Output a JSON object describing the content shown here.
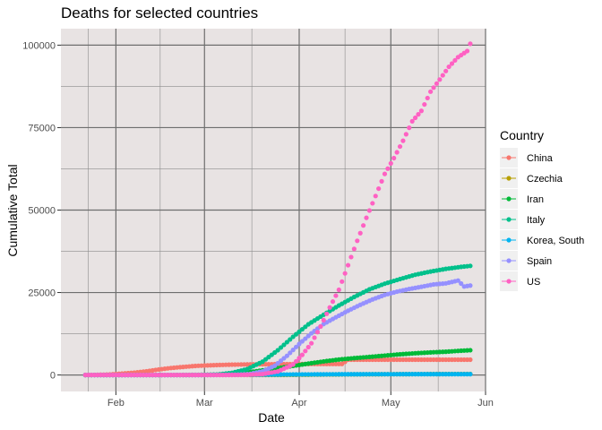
{
  "chart_data": {
    "type": "scatter",
    "title": "Deaths for selected countries",
    "xlabel": "Date",
    "ylabel": "Cumulative Total",
    "x_axis": {
      "type": "date",
      "range": [
        "2020-01-14",
        "2020-06-01"
      ],
      "ticks": [
        {
          "label": "Feb",
          "value": "2020-02-01"
        },
        {
          "label": "Mar",
          "value": "2020-03-01"
        },
        {
          "label": "Apr",
          "value": "2020-04-01"
        },
        {
          "label": "May",
          "value": "2020-05-01"
        },
        {
          "label": "Jun",
          "value": "2020-06-01"
        }
      ]
    },
    "y_axis": {
      "range": [
        -5000,
        105000
      ],
      "ticks": [
        0,
        25000,
        50000,
        75000,
        100000
      ],
      "tick_labels": [
        "0",
        "25000",
        "50000",
        "75000",
        "100000"
      ]
    },
    "grid": true,
    "background": "#e8e3e3",
    "legend": {
      "title": "Country",
      "position": "right"
    },
    "series": [
      {
        "name": "China",
        "color": "#F8766D",
        "points": [
          [
            "2020-01-22",
            17
          ],
          [
            "2020-01-26",
            56
          ],
          [
            "2020-01-30",
            170
          ],
          [
            "2020-02-03",
            425
          ],
          [
            "2020-02-07",
            720
          ],
          [
            "2020-02-11",
            1113
          ],
          [
            "2020-02-15",
            1666
          ],
          [
            "2020-02-19",
            2118
          ],
          [
            "2020-02-23",
            2442
          ],
          [
            "2020-02-27",
            2744
          ],
          [
            "2020-03-02",
            2915
          ],
          [
            "2020-03-06",
            3042
          ],
          [
            "2020-03-10",
            3140
          ],
          [
            "2020-03-14",
            3199
          ],
          [
            "2020-03-18",
            3237
          ],
          [
            "2020-03-22",
            3261
          ],
          [
            "2020-03-26",
            3291
          ],
          [
            "2020-03-30",
            3308
          ],
          [
            "2020-04-03",
            3326
          ],
          [
            "2020-04-07",
            3333
          ],
          [
            "2020-04-11",
            3339
          ],
          [
            "2020-04-15",
            3346
          ],
          [
            "2020-04-17",
            4636
          ],
          [
            "2020-04-22",
            4636
          ],
          [
            "2020-05-01",
            4637
          ],
          [
            "2020-05-10",
            4637
          ],
          [
            "2020-05-20",
            4638
          ],
          [
            "2020-05-27",
            4638
          ]
        ]
      },
      {
        "name": "Czechia",
        "color": "#B79F00",
        "points": [
          [
            "2020-01-22",
            0
          ],
          [
            "2020-03-01",
            0
          ],
          [
            "2020-03-25",
            9
          ],
          [
            "2020-04-10",
            143
          ],
          [
            "2020-04-25",
            223
          ],
          [
            "2020-05-10",
            280
          ],
          [
            "2020-05-27",
            317
          ]
        ]
      },
      {
        "name": "Iran",
        "color": "#00BA38",
        "points": [
          [
            "2020-01-22",
            0
          ],
          [
            "2020-02-20",
            2
          ],
          [
            "2020-03-01",
            54
          ],
          [
            "2020-03-05",
            107
          ],
          [
            "2020-03-10",
            291
          ],
          [
            "2020-03-15",
            724
          ],
          [
            "2020-03-20",
            1433
          ],
          [
            "2020-03-25",
            2077
          ],
          [
            "2020-03-30",
            2757
          ],
          [
            "2020-04-04",
            3452
          ],
          [
            "2020-04-09",
            4110
          ],
          [
            "2020-04-14",
            4683
          ],
          [
            "2020-04-19",
            5118
          ],
          [
            "2020-04-24",
            5481
          ],
          [
            "2020-04-29",
            5877
          ],
          [
            "2020-05-04",
            6277
          ],
          [
            "2020-05-09",
            6589
          ],
          [
            "2020-05-14",
            6854
          ],
          [
            "2020-05-19",
            7057
          ],
          [
            "2020-05-24",
            7359
          ],
          [
            "2020-05-27",
            7508
          ]
        ]
      },
      {
        "name": "Italy",
        "color": "#00C08B",
        "points": [
          [
            "2020-01-22",
            0
          ],
          [
            "2020-02-22",
            2
          ],
          [
            "2020-02-29",
            29
          ],
          [
            "2020-03-05",
            148
          ],
          [
            "2020-03-10",
            631
          ],
          [
            "2020-03-15",
            1809
          ],
          [
            "2020-03-20",
            4032
          ],
          [
            "2020-03-25",
            7503
          ],
          [
            "2020-03-30",
            11591
          ],
          [
            "2020-04-04",
            15362
          ],
          [
            "2020-04-09",
            18279
          ],
          [
            "2020-04-14",
            21067
          ],
          [
            "2020-04-19",
            23660
          ],
          [
            "2020-04-24",
            25969
          ],
          [
            "2020-04-29",
            27682
          ],
          [
            "2020-05-04",
            29079
          ],
          [
            "2020-05-09",
            30395
          ],
          [
            "2020-05-14",
            31368
          ],
          [
            "2020-05-19",
            32169
          ],
          [
            "2020-05-24",
            32785
          ],
          [
            "2020-05-27",
            33072
          ]
        ]
      },
      {
        "name": "Korea, South",
        "color": "#00B4F0",
        "points": [
          [
            "2020-01-22",
            0
          ],
          [
            "2020-02-20",
            1
          ],
          [
            "2020-03-01",
            17
          ],
          [
            "2020-03-15",
            75
          ],
          [
            "2020-04-01",
            165
          ],
          [
            "2020-04-15",
            225
          ],
          [
            "2020-05-01",
            250
          ],
          [
            "2020-05-15",
            262
          ],
          [
            "2020-05-27",
            269
          ]
        ]
      },
      {
        "name": "Spain",
        "color": "#9590FF",
        "points": [
          [
            "2020-01-22",
            0
          ],
          [
            "2020-03-03",
            1
          ],
          [
            "2020-03-08",
            17
          ],
          [
            "2020-03-12",
            84
          ],
          [
            "2020-03-16",
            342
          ],
          [
            "2020-03-20",
            1093
          ],
          [
            "2020-03-24",
            2800
          ],
          [
            "2020-03-28",
            5812
          ],
          [
            "2020-04-01",
            9387
          ],
          [
            "2020-04-05",
            12641
          ],
          [
            "2020-04-09",
            15447
          ],
          [
            "2020-04-13",
            17489
          ],
          [
            "2020-04-17",
            19478
          ],
          [
            "2020-04-21",
            21282
          ],
          [
            "2020-04-25",
            22902
          ],
          [
            "2020-04-29",
            24275
          ],
          [
            "2020-05-03",
            25264
          ],
          [
            "2020-05-07",
            26070
          ],
          [
            "2020-05-11",
            26744
          ],
          [
            "2020-05-15",
            27459
          ],
          [
            "2020-05-19",
            27778
          ],
          [
            "2020-05-23",
            28628
          ],
          [
            "2020-05-25",
            26834
          ],
          [
            "2020-05-27",
            27117
          ]
        ]
      },
      {
        "name": "US",
        "color": "#FF61C3",
        "points": [
          [
            "2020-01-22",
            0
          ],
          [
            "2020-03-01",
            1
          ],
          [
            "2020-03-10",
            28
          ],
          [
            "2020-03-15",
            63
          ],
          [
            "2020-03-20",
            269
          ],
          [
            "2020-03-25",
            1081
          ],
          [
            "2020-03-30",
            3173
          ],
          [
            "2020-04-02",
            6095
          ],
          [
            "2020-04-05",
            9618
          ],
          [
            "2020-04-08",
            14695
          ],
          [
            "2020-04-11",
            20463
          ],
          [
            "2020-04-14",
            25832
          ],
          [
            "2020-04-17",
            33286
          ],
          [
            "2020-04-20",
            40683
          ],
          [
            "2020-04-23",
            47659
          ],
          [
            "2020-04-26",
            54256
          ],
          [
            "2020-04-29",
            60966
          ],
          [
            "2020-05-02",
            65753
          ],
          [
            "2020-05-05",
            71022
          ],
          [
            "2020-05-08",
            76928
          ],
          [
            "2020-05-11",
            80087
          ],
          [
            "2020-05-14",
            85898
          ],
          [
            "2020-05-17",
            89564
          ],
          [
            "2020-05-20",
            93439
          ],
          [
            "2020-05-23",
            96354
          ],
          [
            "2020-05-26",
            98220
          ],
          [
            "2020-05-27",
            100418
          ]
        ]
      }
    ]
  }
}
